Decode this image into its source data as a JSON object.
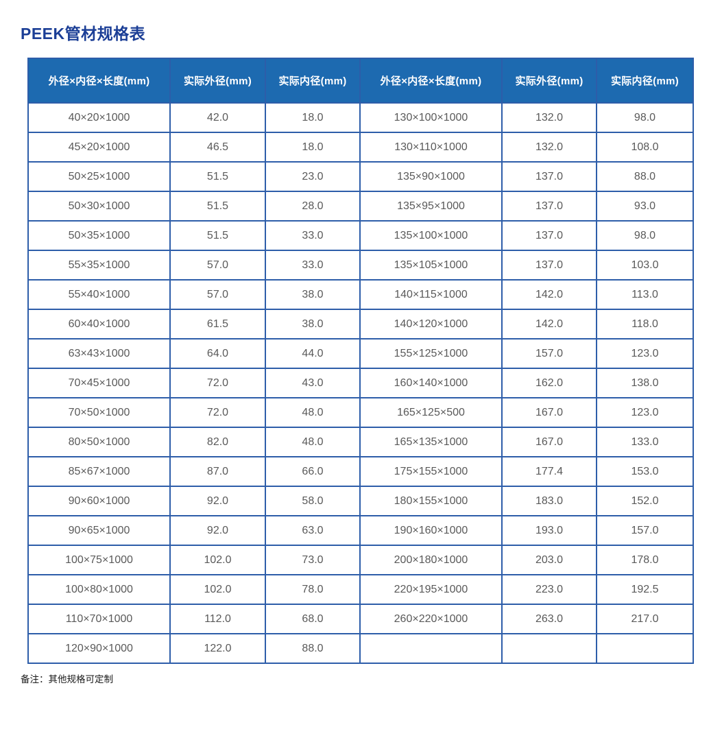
{
  "page": {
    "title": "PEEK管材规格表",
    "note": "备注：其他规格可定制"
  },
  "colors": {
    "title_text": "#1b3e96",
    "header_bg": "#1d6ab0",
    "header_text": "#ffffff",
    "table_border": "#2d5da9",
    "cell_text": "#595959"
  },
  "table": {
    "headers": [
      "外径×内径×长度(mm)",
      "实际外径(mm)",
      "实际内径(mm)",
      "外径×内径×长度(mm)",
      "实际外径(mm)",
      "实际内径(mm)"
    ],
    "rows": [
      [
        "40×20×1000",
        "42.0",
        "18.0",
        "130×100×1000",
        "132.0",
        "98.0"
      ],
      [
        "45×20×1000",
        "46.5",
        "18.0",
        "130×110×1000",
        "132.0",
        "108.0"
      ],
      [
        "50×25×1000",
        "51.5",
        "23.0",
        "135×90×1000",
        "137.0",
        "88.0"
      ],
      [
        "50×30×1000",
        "51.5",
        "28.0",
        "135×95×1000",
        "137.0",
        "93.0"
      ],
      [
        "50×35×1000",
        "51.5",
        "33.0",
        "135×100×1000",
        "137.0",
        "98.0"
      ],
      [
        "55×35×1000",
        "57.0",
        "33.0",
        "135×105×1000",
        "137.0",
        "103.0"
      ],
      [
        "55×40×1000",
        "57.0",
        "38.0",
        "140×115×1000",
        "142.0",
        "113.0"
      ],
      [
        "60×40×1000",
        "61.5",
        "38.0",
        "140×120×1000",
        "142.0",
        "118.0"
      ],
      [
        "63×43×1000",
        "64.0",
        "44.0",
        "155×125×1000",
        "157.0",
        "123.0"
      ],
      [
        "70×45×1000",
        "72.0",
        "43.0",
        "160×140×1000",
        "162.0",
        "138.0"
      ],
      [
        "70×50×1000",
        "72.0",
        "48.0",
        "165×125×500",
        "167.0",
        "123.0"
      ],
      [
        "80×50×1000",
        "82.0",
        "48.0",
        "165×135×1000",
        "167.0",
        "133.0"
      ],
      [
        "85×67×1000",
        "87.0",
        "66.0",
        "175×155×1000",
        "177.4",
        "153.0"
      ],
      [
        "90×60×1000",
        "92.0",
        "58.0",
        "180×155×1000",
        "183.0",
        "152.0"
      ],
      [
        "90×65×1000",
        "92.0",
        "63.0",
        "190×160×1000",
        "193.0",
        "157.0"
      ],
      [
        "100×75×1000",
        "102.0",
        "73.0",
        "200×180×1000",
        "203.0",
        "178.0"
      ],
      [
        "100×80×1000",
        "102.0",
        "78.0",
        "220×195×1000",
        "223.0",
        "192.5"
      ],
      [
        "110×70×1000",
        "112.0",
        "68.0",
        "260×220×1000",
        "263.0",
        "217.0"
      ],
      [
        "120×90×1000",
        "122.0",
        "88.0",
        "",
        "",
        ""
      ]
    ]
  }
}
